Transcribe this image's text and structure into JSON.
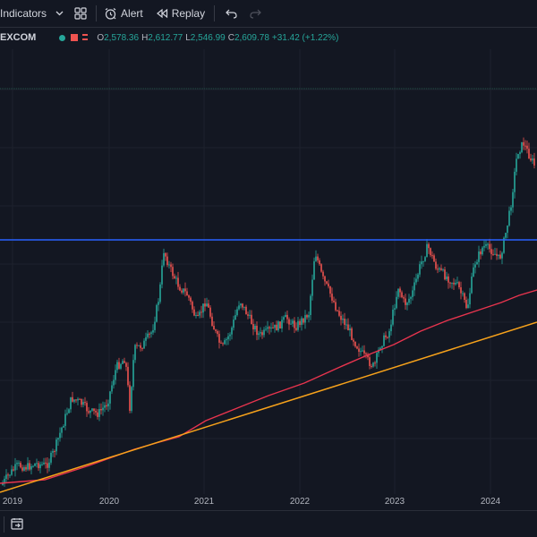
{
  "toolbar": {
    "indicators_label": "Indicators",
    "alert_label": "Alert",
    "replay_label": "Replay"
  },
  "legend": {
    "symbol_fragment": "EXCOM",
    "open_key": "O",
    "open": "2,578.36",
    "high_key": "H",
    "high": "2,612.77",
    "low_key": "L",
    "low": "2,546.99",
    "close_key": "C",
    "close": "2,609.78",
    "change": "+31.42 (+1.22%)",
    "up_color": "#26a69a",
    "down_color": "#ef5350"
  },
  "chart_data": {
    "type": "candlestick",
    "x_ticks": [
      "2019",
      "2020",
      "2021",
      "2022",
      "2023",
      "2024"
    ],
    "overlays": [
      {
        "name": "horizontal line",
        "color": "#2962ff"
      },
      {
        "name": "trend line",
        "color": "#f7a21b"
      },
      {
        "name": "moving average",
        "color": "#e8344e"
      }
    ]
  }
}
